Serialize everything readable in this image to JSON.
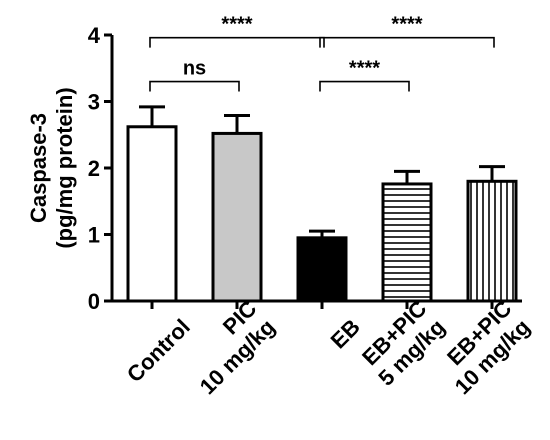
{
  "chart_data": {
    "type": "bar",
    "title": "",
    "ylabel": [
      "Caspase-3",
      "(pg/mg protein)"
    ],
    "xlabel": "",
    "ylim": [
      0,
      4
    ],
    "yticks": [
      "0",
      "1",
      "2",
      "3",
      "4"
    ],
    "grid": false,
    "categories": [
      {
        "lines": [
          "Control"
        ],
        "value": 2.62,
        "error": 0.3,
        "fill": "white",
        "color": "#ffffff"
      },
      {
        "lines": [
          "PIC",
          "10 mg/kg"
        ],
        "value": 2.52,
        "error": 0.27,
        "fill": "gray",
        "color": "#c8c8c8"
      },
      {
        "lines": [
          "EB"
        ],
        "value": 0.95,
        "error": 0.1,
        "fill": "black",
        "color": "#000000"
      },
      {
        "lines": [
          "EB+PIC",
          "5 mg/kg"
        ],
        "value": 1.76,
        "error": 0.19,
        "fill": "horizontal-stripes",
        "color": "#ffffff"
      },
      {
        "lines": [
          "EB+PIC",
          "10 mg/kg"
        ],
        "value": 1.8,
        "error": 0.22,
        "fill": "vertical-stripes",
        "color": "#ffffff"
      }
    ],
    "significance": [
      {
        "from": 0,
        "to": 1,
        "label": "ns",
        "level": 3.3
      },
      {
        "from": 0,
        "to": 2,
        "label": "****",
        "level": 3.96
      },
      {
        "from": 2,
        "to": 4,
        "label": "****",
        "level": 3.96
      },
      {
        "from": 2,
        "to": 3,
        "label": "****",
        "level": 3.3
      }
    ]
  }
}
